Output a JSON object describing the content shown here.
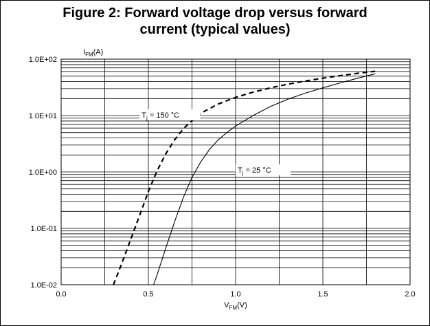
{
  "chart_data": {
    "type": "line",
    "title": "Figure 2: Forward voltage drop versus forward\ncurrent (typical values)",
    "ylabel": {
      "main": "I",
      "sub": "FM",
      "unit": "(A)"
    },
    "xlabel": {
      "main": "V",
      "sub": "FM",
      "unit": "(V)"
    },
    "x_scale": "linear",
    "y_scale": "log",
    "xlim": [
      0,
      2.0
    ],
    "ylim": [
      0.01,
      100
    ],
    "grid": true,
    "x_ticks": [
      0,
      0.5,
      1.0,
      1.5,
      2.0
    ],
    "x_tick_labels": [
      "0.0",
      "0.5",
      "1.0",
      "1.5",
      "2.0"
    ],
    "y_ticks": [
      0.01,
      0.1,
      1,
      10,
      100
    ],
    "y_tick_labels": [
      "1.0E-02",
      "1.0E-01",
      "1.0E+00",
      "1.0E+01",
      "1.0E+02"
    ],
    "series": [
      {
        "name": "Tj = 150 °C",
        "label_main": "T",
        "label_sub": "j",
        "label_rest": " = 150 °C",
        "style": "dashed",
        "x": [
          0.3,
          0.35,
          0.4,
          0.45,
          0.5,
          0.55,
          0.6,
          0.65,
          0.7,
          0.75,
          0.8,
          0.9,
          1.0,
          1.1,
          1.2,
          1.3,
          1.4,
          1.5,
          1.6,
          1.7,
          1.8
        ],
        "y": [
          0.01,
          0.025,
          0.065,
          0.17,
          0.45,
          1.05,
          2.1,
          3.7,
          5.8,
          8.2,
          11,
          16,
          21,
          26,
          31,
          36,
          41,
          46,
          51,
          56,
          61
        ]
      },
      {
        "name": "Tj = 25 °C",
        "label_main": "T",
        "label_sub": "j",
        "label_rest": " = 25 °C",
        "style": "solid",
        "x": [
          0.53,
          0.55,
          0.6,
          0.65,
          0.7,
          0.75,
          0.8,
          0.85,
          0.9,
          0.95,
          1.0,
          1.1,
          1.2,
          1.3,
          1.4,
          1.5,
          1.6,
          1.7,
          1.8
        ],
        "y": [
          0.01,
          0.015,
          0.045,
          0.13,
          0.35,
          0.8,
          1.5,
          2.5,
          3.7,
          5.0,
          6.5,
          10,
          14.5,
          19.5,
          25,
          31,
          38,
          46,
          55
        ]
      }
    ]
  }
}
